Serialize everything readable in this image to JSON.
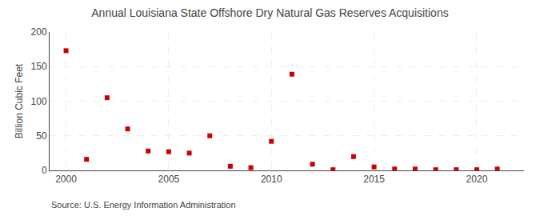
{
  "chart_data": {
    "type": "scatter",
    "title": "Annual Louisiana State Offshore Dry Natural Gas Reserves Acquisitions",
    "y_label": "Billion Cubic Feet",
    "annotations": [
      "Source: U.S. Energy Information Administration"
    ],
    "x": [
      2000,
      2001,
      2002,
      2003,
      2004,
      2005,
      2006,
      2007,
      2008,
      2009,
      2010,
      2011,
      2012,
      2013,
      2014,
      2015,
      2016,
      2017,
      2018,
      2019,
      2020,
      2021
    ],
    "values": [
      173,
      16,
      105,
      60,
      28,
      27,
      25,
      50,
      6,
      4,
      42,
      139,
      9,
      1,
      20,
      5,
      2,
      2,
      1,
      1,
      1,
      2
    ],
    "color": "#cc0000",
    "marker": "square",
    "xlim": [
      1999.2,
      2022.3
    ],
    "xticks": [
      2000,
      2005,
      2010,
      2015,
      2020
    ],
    "ylim": [
      0,
      200
    ],
    "yticks": [
      0,
      50,
      100,
      150,
      200
    ],
    "grid": true
  }
}
